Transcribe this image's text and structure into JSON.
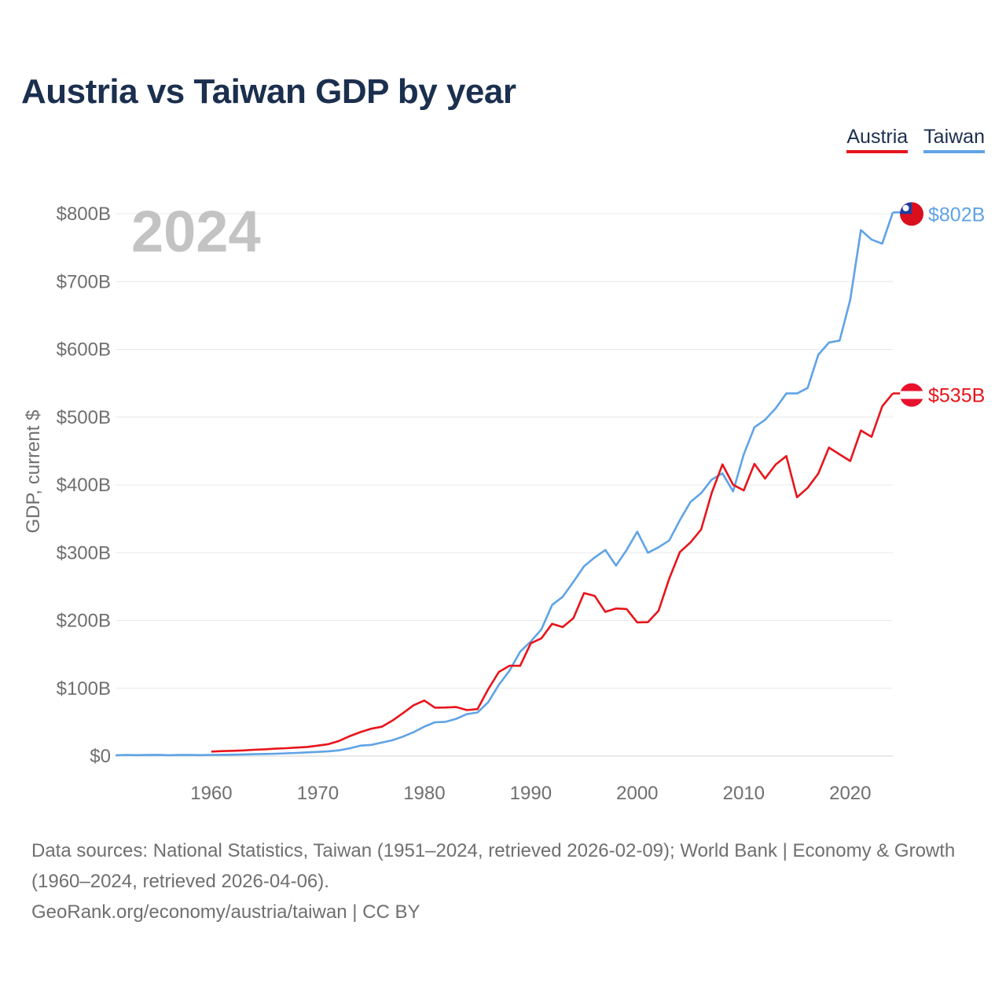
{
  "chart_data": {
    "type": "line",
    "title": "Austria vs Taiwan GDP by year",
    "ylabel": "GDP, current $",
    "xlabel": "",
    "xlim": [
      1951,
      2024
    ],
    "ylim": [
      0,
      820
    ],
    "yticks": [
      {
        "value": 0,
        "label": "$0"
      },
      {
        "value": 100,
        "label": "$100B"
      },
      {
        "value": 200,
        "label": "$200B"
      },
      {
        "value": 300,
        "label": "$300B"
      },
      {
        "value": 400,
        "label": "$400B"
      },
      {
        "value": 500,
        "label": "$500B"
      },
      {
        "value": 600,
        "label": "$600B"
      },
      {
        "value": 700,
        "label": "$700B"
      },
      {
        "value": 800,
        "label": "$800B"
      }
    ],
    "xticks": [
      {
        "value": 1960,
        "label": "1960"
      },
      {
        "value": 1970,
        "label": "1970"
      },
      {
        "value": 1980,
        "label": "1980"
      },
      {
        "value": 1990,
        "label": "1990"
      },
      {
        "value": 2000,
        "label": "2000"
      },
      {
        "value": 2010,
        "label": "2010"
      },
      {
        "value": 2020,
        "label": "2020"
      }
    ],
    "grid": true,
    "year_watermark": "2024",
    "series": [
      {
        "name": "Austria",
        "color": "#e8141b",
        "end_label": "$535B",
        "flag": "austria-flag",
        "x": [
          1960,
          1961,
          1962,
          1963,
          1964,
          1965,
          1966,
          1967,
          1968,
          1969,
          1970,
          1971,
          1972,
          1973,
          1974,
          1975,
          1976,
          1977,
          1978,
          1979,
          1980,
          1981,
          1982,
          1983,
          1984,
          1985,
          1986,
          1987,
          1988,
          1989,
          1990,
          1991,
          1992,
          1993,
          1994,
          1995,
          1996,
          1997,
          1998,
          1999,
          2000,
          2001,
          2002,
          2003,
          2004,
          2005,
          2006,
          2007,
          2008,
          2009,
          2010,
          2011,
          2012,
          2013,
          2014,
          2015,
          2016,
          2017,
          2018,
          2019,
          2020,
          2021,
          2022,
          2023,
          2024
        ],
        "values": [
          6.6,
          7.3,
          7.8,
          8.4,
          9.3,
          10.0,
          10.9,
          11.6,
          12.5,
          13.5,
          15.4,
          17.6,
          22.4,
          29.5,
          35.4,
          40.4,
          43.2,
          52.3,
          63.4,
          75.0,
          82.0,
          71.4,
          71.6,
          72.4,
          67.8,
          69.3,
          98.7,
          124.0,
          133.3,
          133.1,
          166.5,
          173.7,
          195.1,
          190.3,
          203.5,
          240.5,
          236.3,
          212.8,
          217.7,
          216.9,
          197.2,
          197.6,
          214.4,
          261.7,
          300.9,
          315.2,
          334.3,
          388.7,
          430.3,
          400.2,
          391.9,
          431.1,
          409.4,
          430.1,
          442.6,
          381.8,
          395.6,
          416.8,
          455.1,
          445.1,
          435.2,
          480.4,
          471.0,
          516.0,
          535.0
        ]
      },
      {
        "name": "Taiwan",
        "color": "#5fa3e6",
        "end_label": "$802B",
        "flag": "taiwan-flag",
        "x": [
          1951,
          1952,
          1953,
          1954,
          1955,
          1956,
          1957,
          1958,
          1959,
          1960,
          1961,
          1962,
          1963,
          1964,
          1965,
          1966,
          1967,
          1968,
          1969,
          1970,
          1971,
          1972,
          1973,
          1974,
          1975,
          1976,
          1977,
          1978,
          1979,
          1980,
          1981,
          1982,
          1983,
          1984,
          1985,
          1986,
          1987,
          1988,
          1989,
          1990,
          1991,
          1992,
          1993,
          1994,
          1995,
          1996,
          1997,
          1998,
          1999,
          2000,
          2001,
          2002,
          2003,
          2004,
          2005,
          2006,
          2007,
          2008,
          2009,
          2010,
          2011,
          2012,
          2013,
          2014,
          2015,
          2016,
          2017,
          2018,
          2019,
          2020,
          2021,
          2022,
          2023,
          2024
        ],
        "values": [
          1.2,
          1.7,
          1.4,
          1.6,
          1.9,
          1.3,
          1.6,
          1.7,
          1.4,
          1.7,
          1.8,
          2.1,
          2.4,
          2.8,
          3.1,
          3.5,
          4.0,
          4.6,
          5.4,
          6.1,
          7.1,
          8.5,
          11.5,
          15.4,
          16.5,
          19.8,
          23.3,
          28.7,
          35.2,
          43.5,
          49.8,
          50.5,
          55.0,
          61.9,
          64.3,
          79.5,
          105.0,
          126.0,
          154.0,
          169.0,
          187.0,
          223.0,
          235.0,
          257.0,
          280.0,
          293.0,
          304.0,
          281.0,
          304.0,
          331.0,
          300.0,
          308.0,
          318.0,
          348.0,
          375.0,
          388.0,
          408.0,
          417.0,
          390.5,
          445.0,
          485.0,
          496.0,
          513.0,
          535.0,
          535.0,
          543.0,
          592.0,
          610.0,
          613.0,
          673.0,
          776.0,
          762.0,
          756.0,
          802.0
        ]
      }
    ]
  },
  "sources": {
    "line1": "Data sources: National Statistics, Taiwan (1951–2024, retrieved 2026-02-09); World Bank | Economy & Growth (1960–2024, retrieved 2026-04-06).",
    "line2": "GeoRank.org/economy/austria/taiwan | CC BY"
  }
}
